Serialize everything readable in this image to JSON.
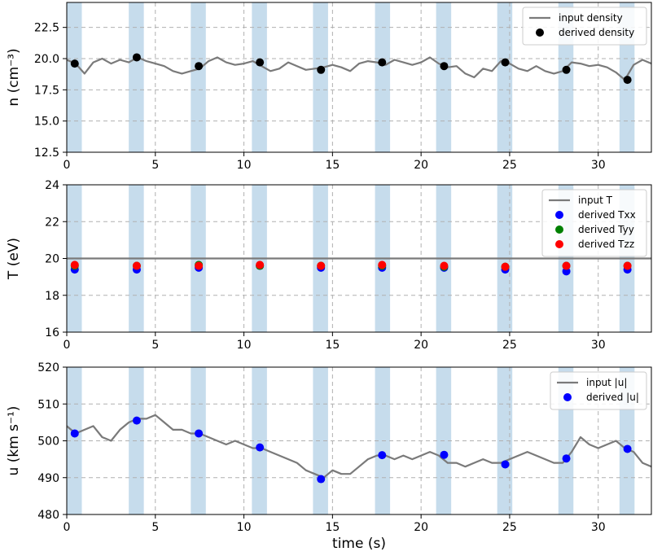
{
  "chart_data": [
    {
      "type": "line",
      "ylabel": "n (cm⁻³)",
      "xlabel": "",
      "xlim": [
        0,
        33
      ],
      "ylim": [
        12.5,
        24.5
      ],
      "xticks": [
        0,
        5,
        10,
        15,
        20,
        25,
        30
      ],
      "yticks": [
        12.5,
        15.0,
        17.5,
        20.0,
        22.5
      ],
      "ytick_labels": [
        "12.5",
        "15.0",
        "17.5",
        "20.0",
        "22.5"
      ],
      "grid": "dashed",
      "legend": "top-right",
      "shaded_intervals": [
        [
          0,
          0.85
        ],
        [
          3.5,
          4.35
        ],
        [
          7.0,
          7.85
        ],
        [
          10.45,
          11.3
        ],
        [
          13.9,
          14.75
        ],
        [
          17.4,
          18.25
        ],
        [
          20.85,
          21.7
        ],
        [
          24.3,
          25.15
        ],
        [
          27.75,
          28.6
        ],
        [
          31.2,
          32.05
        ]
      ],
      "series": [
        {
          "name": "input density",
          "kind": "line",
          "color": "#7a7a7a",
          "x": [
            0,
            0.5,
            1.0,
            1.5,
            2.0,
            2.5,
            3.0,
            3.5,
            4.0,
            4.5,
            5.0,
            5.5,
            6.0,
            6.5,
            7.0,
            7.5,
            8.0,
            8.5,
            9.0,
            9.5,
            10.0,
            10.5,
            11.0,
            11.5,
            12.0,
            12.5,
            13.0,
            13.5,
            14.0,
            14.5,
            15.0,
            15.5,
            16.0,
            16.5,
            17.0,
            17.5,
            18.0,
            18.5,
            19.0,
            19.5,
            20.0,
            20.5,
            21.0,
            21.5,
            22.0,
            22.5,
            23.0,
            23.5,
            24.0,
            24.5,
            25.0,
            25.5,
            26.0,
            26.5,
            27.0,
            27.5,
            28.0,
            28.5,
            29.0,
            29.5,
            30.0,
            30.5,
            31.0,
            31.5,
            32.0,
            32.5,
            33.0
          ],
          "y": [
            19.9,
            19.6,
            18.8,
            19.7,
            20.0,
            19.6,
            19.9,
            19.7,
            20.1,
            19.8,
            19.6,
            19.4,
            19.0,
            18.8,
            19.0,
            19.2,
            19.8,
            20.1,
            19.7,
            19.5,
            19.6,
            19.8,
            19.4,
            19.0,
            19.2,
            19.7,
            19.4,
            19.1,
            19.2,
            19.3,
            19.5,
            19.3,
            19.0,
            19.6,
            19.8,
            19.7,
            19.5,
            19.9,
            19.7,
            19.5,
            19.7,
            20.1,
            19.6,
            19.3,
            19.4,
            18.8,
            18.5,
            19.2,
            19.0,
            19.8,
            19.6,
            19.2,
            19.0,
            19.4,
            19.0,
            18.8,
            19.0,
            19.7,
            19.6,
            19.4,
            19.5,
            19.3,
            18.9,
            18.3,
            19.5,
            19.9,
            19.6
          ]
        },
        {
          "name": "derived density",
          "kind": "scatter",
          "color": "#000000",
          "x": [
            0.45,
            3.95,
            7.45,
            10.9,
            14.35,
            17.8,
            21.3,
            24.75,
            28.2,
            31.65
          ],
          "y": [
            19.6,
            20.1,
            19.4,
            19.7,
            19.1,
            19.7,
            19.4,
            19.7,
            19.1,
            18.3
          ]
        }
      ]
    },
    {
      "type": "scatter",
      "ylabel": "T (eV)",
      "xlabel": "",
      "xlim": [
        0,
        33
      ],
      "ylim": [
        16,
        24
      ],
      "xticks": [
        0,
        5,
        10,
        15,
        20,
        25,
        30
      ],
      "yticks": [
        16,
        18,
        20,
        22,
        24
      ],
      "ytick_labels": [
        "16",
        "18",
        "20",
        "22",
        "24"
      ],
      "grid": "dashed",
      "legend": "top-right",
      "shaded_intervals": [
        [
          0,
          0.85
        ],
        [
          3.5,
          4.35
        ],
        [
          7.0,
          7.85
        ],
        [
          10.45,
          11.3
        ],
        [
          13.9,
          14.75
        ],
        [
          17.4,
          18.25
        ],
        [
          20.85,
          21.7
        ],
        [
          24.3,
          25.15
        ],
        [
          27.75,
          28.6
        ],
        [
          31.2,
          32.05
        ]
      ],
      "series": [
        {
          "name": "input T",
          "kind": "line",
          "color": "#7a7a7a",
          "x": [
            0,
            33
          ],
          "y": [
            20,
            20
          ]
        },
        {
          "name": "derived Txx",
          "kind": "scatter",
          "color": "#0000ff",
          "x": [
            0.45,
            3.95,
            7.45,
            10.9,
            14.35,
            17.8,
            21.3,
            24.75,
            28.2,
            31.65
          ],
          "y": [
            19.4,
            19.4,
            19.5,
            19.6,
            19.5,
            19.5,
            19.5,
            19.4,
            19.3,
            19.4
          ]
        },
        {
          "name": "derived Tyy",
          "kind": "scatter",
          "color": "#008000",
          "x": [
            0.45,
            3.95,
            7.45,
            10.9,
            14.35,
            17.8,
            21.3,
            24.75,
            28.2,
            31.65
          ],
          "y": [
            19.6,
            19.6,
            19.65,
            19.6,
            19.6,
            19.6,
            19.55,
            19.55,
            19.6,
            19.6
          ]
        },
        {
          "name": "derived Tzz",
          "kind": "scatter",
          "color": "#ff0000",
          "x": [
            0.45,
            3.95,
            7.45,
            10.9,
            14.35,
            17.8,
            21.3,
            24.75,
            28.2,
            31.65
          ],
          "y": [
            19.65,
            19.6,
            19.6,
            19.65,
            19.6,
            19.65,
            19.6,
            19.55,
            19.6,
            19.6
          ]
        }
      ]
    },
    {
      "type": "line",
      "ylabel": "u (km s⁻¹)",
      "xlabel": "time (s)",
      "xlim": [
        0,
        33
      ],
      "ylim": [
        480,
        520
      ],
      "xticks": [
        0,
        5,
        10,
        15,
        20,
        25,
        30
      ],
      "yticks": [
        480,
        490,
        500,
        510,
        520
      ],
      "ytick_labels": [
        "480",
        "490",
        "500",
        "510",
        "520"
      ],
      "grid": "dashed",
      "legend": "top-right",
      "shaded_intervals": [
        [
          0,
          0.85
        ],
        [
          3.5,
          4.35
        ],
        [
          7.0,
          7.85
        ],
        [
          10.45,
          11.3
        ],
        [
          13.9,
          14.75
        ],
        [
          17.4,
          18.25
        ],
        [
          20.85,
          21.7
        ],
        [
          24.3,
          25.15
        ],
        [
          27.75,
          28.6
        ],
        [
          31.2,
          32.05
        ]
      ],
      "series": [
        {
          "name": "input |u|",
          "kind": "line",
          "color": "#7a7a7a",
          "x": [
            0,
            0.5,
            1.0,
            1.5,
            2.0,
            2.5,
            3.0,
            3.5,
            4.0,
            4.5,
            5.0,
            5.5,
            6.0,
            6.5,
            7.0,
            7.5,
            8.0,
            8.5,
            9.0,
            9.5,
            10.0,
            10.5,
            11.0,
            11.5,
            12.0,
            12.5,
            13.0,
            13.5,
            14.0,
            14.5,
            15.0,
            15.5,
            16.0,
            16.5,
            17.0,
            17.5,
            18.0,
            18.5,
            19.0,
            19.5,
            20.0,
            20.5,
            21.0,
            21.5,
            22.0,
            22.5,
            23.0,
            23.5,
            24.0,
            24.5,
            25.0,
            25.5,
            26.0,
            26.5,
            27.0,
            27.5,
            28.0,
            28.5,
            29.0,
            29.5,
            30.0,
            30.5,
            31.0,
            31.5,
            32.0,
            32.5,
            33.0
          ],
          "y": [
            504,
            502,
            503,
            504,
            501,
            500,
            503,
            505,
            506,
            506,
            507,
            505,
            503,
            503,
            502,
            502,
            501,
            500,
            499,
            500,
            499,
            498,
            498,
            497,
            496,
            495,
            494,
            492,
            491,
            490,
            492,
            491,
            491,
            493,
            495,
            496,
            496,
            495,
            496,
            495,
            496,
            497,
            496,
            494,
            494,
            493,
            494,
            495,
            494,
            494,
            495,
            496,
            497,
            496,
            495,
            494,
            494,
            497,
            501,
            499,
            498,
            499,
            500,
            498,
            497,
            494,
            493
          ]
        },
        {
          "name": "derived |u|",
          "kind": "scatter",
          "color": "#0000ff",
          "x": [
            0.45,
            3.95,
            7.45,
            10.9,
            14.35,
            17.8,
            21.3,
            24.75,
            28.2,
            31.65
          ],
          "y": [
            502,
            505.5,
            502,
            498.2,
            489.6,
            496.1,
            496.2,
            493.6,
            495.2,
            497.8
          ]
        }
      ]
    }
  ]
}
